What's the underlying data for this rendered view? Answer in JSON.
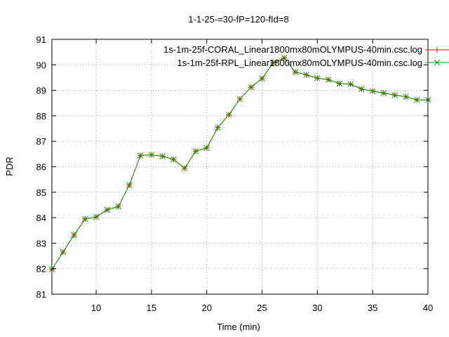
{
  "chart_data": {
    "type": "line",
    "title": "1-1-25-=30-fP=120-fId=8",
    "xlabel": "Time (min)",
    "ylabel": "PDR",
    "xlim": [
      6,
      40
    ],
    "ylim": [
      81,
      91
    ],
    "xticks": [
      10,
      15,
      20,
      25,
      30,
      35,
      40
    ],
    "yticks": [
      81,
      82,
      83,
      84,
      85,
      86,
      87,
      88,
      89,
      90,
      91
    ],
    "grid": true,
    "legend_position": "top-right",
    "x": [
      6,
      7,
      8,
      9,
      10,
      11,
      12,
      13,
      14,
      15,
      16,
      17,
      18,
      19,
      20,
      21,
      22,
      23,
      24,
      25,
      26,
      27,
      28,
      29,
      30,
      31,
      32,
      33,
      34,
      35,
      36,
      37,
      38,
      39,
      40
    ],
    "series": [
      {
        "name": "1s-1m-25f-CORAL_Linear1800mx80mOLYMPUS-40min.csc.log",
        "color": "#ff0000",
        "marker": "plus",
        "values": [
          81.97,
          82.65,
          83.32,
          83.95,
          84.03,
          84.31,
          84.44,
          85.28,
          86.44,
          86.47,
          86.41,
          86.29,
          85.94,
          86.61,
          86.74,
          87.54,
          88.04,
          88.66,
          89.12,
          89.46,
          90.08,
          90.27,
          89.72,
          89.61,
          89.48,
          89.42,
          89.26,
          89.24,
          89.05,
          88.97,
          88.89,
          88.81,
          88.75,
          88.62,
          88.62
        ]
      },
      {
        "name": "1s-1m-25f-RPL_Linear1800mx80mOLYMPUS-40min.csc.log",
        "color": "#00a000",
        "marker": "cross",
        "values": [
          81.97,
          82.65,
          83.32,
          83.95,
          84.03,
          84.31,
          84.44,
          85.28,
          86.44,
          86.47,
          86.41,
          86.29,
          85.94,
          86.61,
          86.74,
          87.54,
          88.04,
          88.66,
          89.12,
          89.46,
          90.08,
          90.27,
          89.72,
          89.61,
          89.48,
          89.42,
          89.26,
          89.24,
          89.05,
          88.97,
          88.89,
          88.81,
          88.75,
          88.62,
          88.62
        ]
      }
    ]
  }
}
